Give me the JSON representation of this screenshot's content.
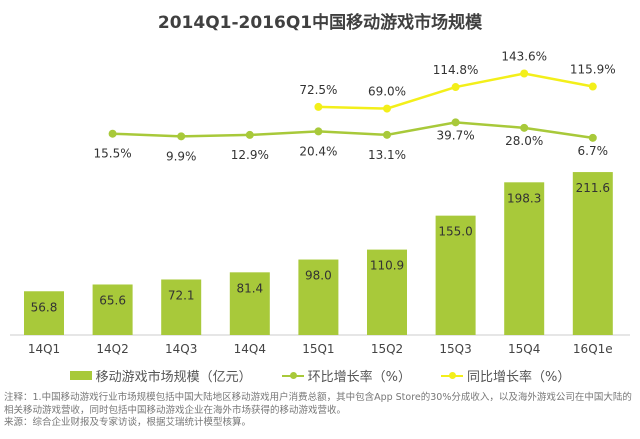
{
  "chart_data": {
    "type": "bar",
    "title": "2014Q1-2016Q1中国移动游戏市场规模",
    "categories": [
      "14Q1",
      "14Q2",
      "14Q3",
      "14Q4",
      "15Q1",
      "15Q2",
      "15Q3",
      "15Q4",
      "16Q1e"
    ],
    "legend_placement": "bottom",
    "grid": false,
    "series": [
      {
        "name": "移动游戏市场规模（亿元）",
        "type": "bar",
        "color": "#a8c93a",
        "values": [
          56.8,
          65.6,
          72.1,
          81.4,
          98.0,
          110.9,
          155.0,
          198.3,
          211.6
        ],
        "labels": [
          "56.8",
          "65.6",
          "72.1",
          "81.4",
          "98.0",
          "110.9",
          "155.0",
          "198.3",
          "211.6"
        ]
      },
      {
        "name": "环比增长率（%）",
        "type": "line",
        "color": "#a8c93a",
        "values": [
          null,
          15.5,
          9.9,
          12.9,
          20.4,
          13.1,
          39.7,
          28.0,
          6.7
        ],
        "labels": [
          null,
          "15.5%",
          "9.9%",
          "12.9%",
          "20.4%",
          "13.1%",
          "39.7%",
          "28.0%",
          "6.7%"
        ]
      },
      {
        "name": "同比增长率（%）",
        "type": "line",
        "color": "#f3ef1a",
        "values": [
          null,
          null,
          null,
          null,
          72.5,
          69.0,
          114.8,
          143.6,
          115.9
        ],
        "labels": [
          null,
          null,
          null,
          null,
          "72.5%",
          "69.0%",
          "114.8%",
          "143.6%",
          "115.9%"
        ]
      }
    ]
  },
  "notes": {
    "note1": "注释：1.中国移动游戏行业市场规模包括中国大陆地区移动游戏用户消费总额，其中包含App Store的30%分成收入，以及海外游戏公司在中国大陆的相关移动游戏营收，同时包括中国移动游戏企业在海外市场获得的移动游戏营收。",
    "source": "来源：综合企业财报及专家访谈，根据艾瑞统计模型核算。"
  }
}
